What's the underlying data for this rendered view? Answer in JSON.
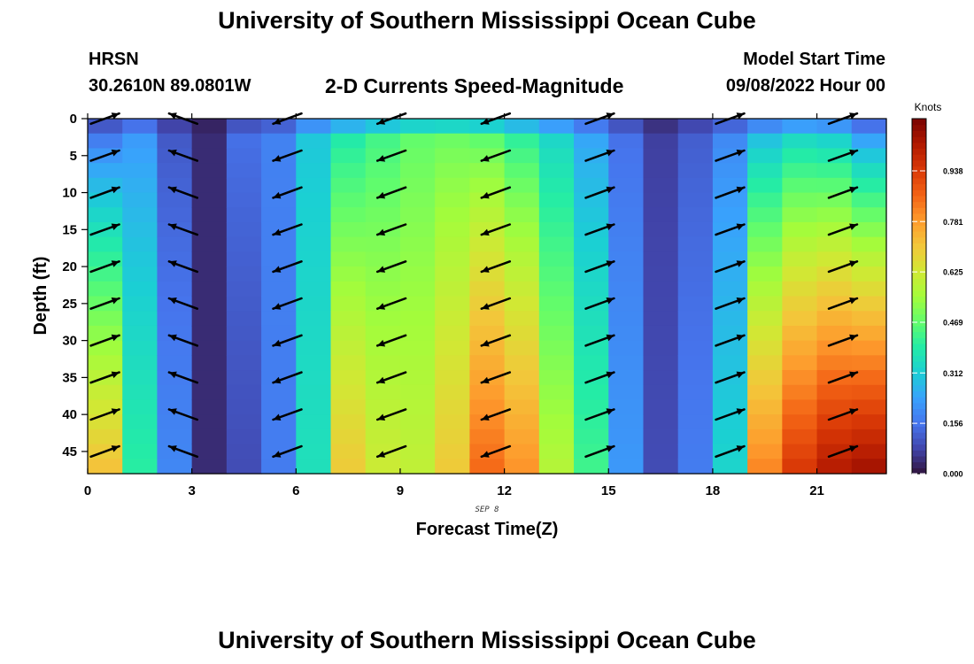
{
  "header": {
    "title": "University of Southern Mississippi Ocean Cube",
    "station_name": "HRSN",
    "station_coords": "30.2610N  89.0801W",
    "chart_title": "2-D Currents Speed-Magnitude",
    "model_start_label": "Model Start Time",
    "model_start_value": "09/08/2022 Hour 00"
  },
  "footer": {
    "repeated_title": "University of Southern Mississippi Ocean Cube"
  },
  "chart_data": {
    "type": "heatmap",
    "title": "2-D Currents Speed-Magnitude",
    "xlabel": "Forecast Time(Z)",
    "ylabel": "Depth (ft)",
    "date_label": "SEP 8",
    "xlim": [
      0,
      23
    ],
    "ylim": [
      0,
      48
    ],
    "y_inverted": true,
    "x_ticks": [
      0,
      3,
      6,
      9,
      12,
      15,
      18,
      21
    ],
    "y_ticks": [
      0,
      5,
      10,
      15,
      20,
      25,
      30,
      35,
      40,
      45
    ],
    "colorbar": {
      "label": "Knots",
      "min": 0.0,
      "max": 1.1,
      "ticks": [
        "0.000",
        "0.156",
        "0.312",
        "0.469",
        "0.625",
        "0.781",
        "0.938"
      ],
      "colormap": [
        "#30123b",
        "#4145ab",
        "#4675ed",
        "#39a2fc",
        "#1bcfd4",
        "#24eca6",
        "#61fc6c",
        "#a4fc3b",
        "#d1e834",
        "#f3c63a",
        "#fe9b2d",
        "#f36315",
        "#d93806",
        "#b11901",
        "#7a0402"
      ]
    },
    "hours": [
      0,
      1,
      2,
      3,
      4,
      5,
      6,
      7,
      8,
      9,
      10,
      11,
      12,
      13,
      14,
      15,
      16,
      17,
      18,
      19,
      20,
      21,
      22
    ],
    "surface_speed": [
      0.16,
      0.22,
      0.11,
      0.04,
      0.15,
      0.18,
      0.3,
      0.38,
      0.43,
      0.47,
      0.48,
      0.46,
      0.4,
      0.33,
      0.24,
      0.15,
      0.07,
      0.12,
      0.19,
      0.28,
      0.33,
      0.31,
      0.22
    ],
    "surface_depth_ft": 2.5,
    "deep_speed": [
      0.72,
      0.4,
      0.19,
      0.04,
      0.09,
      0.17,
      0.36,
      0.7,
      0.62,
      0.6,
      0.7,
      0.86,
      0.8,
      0.58,
      0.43,
      0.22,
      0.09,
      0.17,
      0.33,
      0.82,
      0.95,
      1.02,
      1.05
    ],
    "deep_depth_ft": 48,
    "arrow_hours": [
      0.5,
      2.75,
      5.75,
      8.75,
      11.75,
      14.75,
      18.5,
      21.75
    ],
    "arrow_depths_ft": [
      0,
      5,
      10,
      15,
      20,
      25,
      30,
      35,
      40,
      45
    ],
    "arrow_direction_deg": [
      20,
      160,
      200,
      200,
      200,
      20,
      20,
      20
    ]
  }
}
